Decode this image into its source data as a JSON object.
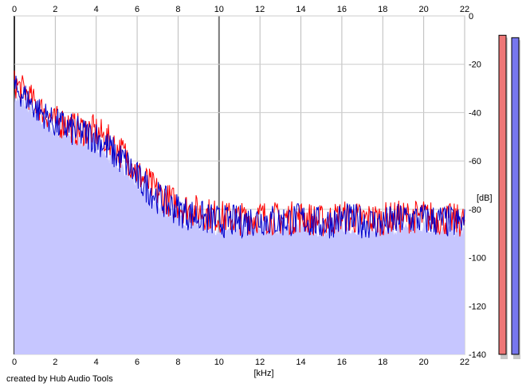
{
  "chart_data": {
    "type": "area",
    "xlabel": "[kHz]",
    "ylabel": "[dB]",
    "xlim": [
      0,
      22
    ],
    "ylim": [
      -140,
      0
    ],
    "x_ticks": [
      "0",
      "2",
      "4",
      "6",
      "8",
      "10",
      "12",
      "14",
      "16",
      "18",
      "20",
      "22"
    ],
    "y_ticks": [
      "0",
      "-20",
      "-40",
      "-60",
      "-80",
      "-100",
      "-120",
      "-140"
    ],
    "grid": true,
    "series": [
      {
        "color": "#ff0000",
        "x": [
          0,
          0.5,
          1,
          1.5,
          2,
          2.5,
          3,
          3.5,
          4,
          4.5,
          5,
          5.5,
          6,
          6.5,
          7,
          7.5,
          8,
          8.5,
          9,
          9.5,
          10,
          11,
          12,
          13,
          14,
          15,
          16,
          17,
          18,
          19,
          20,
          21,
          22
        ],
        "values": [
          -28,
          -31,
          -36,
          -40,
          -44,
          -44,
          -47,
          -47,
          -48,
          -51,
          -55,
          -58,
          -65,
          -69,
          -73,
          -76,
          -78,
          -80,
          -81,
          -82,
          -83,
          -84,
          -83,
          -84,
          -83,
          -85,
          -83,
          -84,
          -84,
          -83,
          -83,
          -84,
          -85
        ]
      },
      {
        "color": "#0000cc",
        "x": [
          0,
          0.5,
          1,
          1.5,
          2,
          2.5,
          3,
          3.5,
          4,
          4.5,
          5,
          5.5,
          6,
          6.5,
          7,
          7.5,
          8,
          8.5,
          9,
          9.5,
          10,
          11,
          12,
          13,
          14,
          15,
          16,
          17,
          18,
          19,
          20,
          21,
          22
        ],
        "values": [
          -30,
          -33,
          -38,
          -41,
          -45,
          -46,
          -48,
          -49,
          -50,
          -54,
          -58,
          -61,
          -67,
          -71,
          -75,
          -78,
          -80,
          -82,
          -83,
          -84,
          -85,
          -85,
          -84,
          -85,
          -84,
          -86,
          -84,
          -85,
          -86,
          -84,
          -84,
          -85,
          -86
        ]
      }
    ],
    "fill": {
      "color": "#c6c6ff",
      "x": [
        0,
        0.5,
        1,
        1.5,
        2,
        2.5,
        3,
        3.5,
        4,
        4.5,
        5,
        5.5,
        6,
        6.5,
        7,
        7.5,
        8,
        8.5,
        9,
        9.5,
        10,
        11,
        12,
        13,
        14,
        15,
        16,
        17,
        18,
        19,
        20,
        21,
        22
      ],
      "values": [
        -33,
        -36,
        -41,
        -44,
        -48,
        -49,
        -51,
        -52,
        -53,
        -57,
        -61,
        -64,
        -70,
        -74,
        -78,
        -81,
        -83,
        -85,
        -86,
        -87,
        -88,
        -88,
        -87,
        -88,
        -87,
        -89,
        -87,
        -88,
        -89,
        -87,
        -87,
        -88,
        -89
      ]
    },
    "meters": [
      {
        "color": "#ee7777",
        "value": -8
      },
      {
        "color": "#7777ee",
        "value": -9
      }
    ]
  },
  "credit": "created by Hub Audio Tools"
}
